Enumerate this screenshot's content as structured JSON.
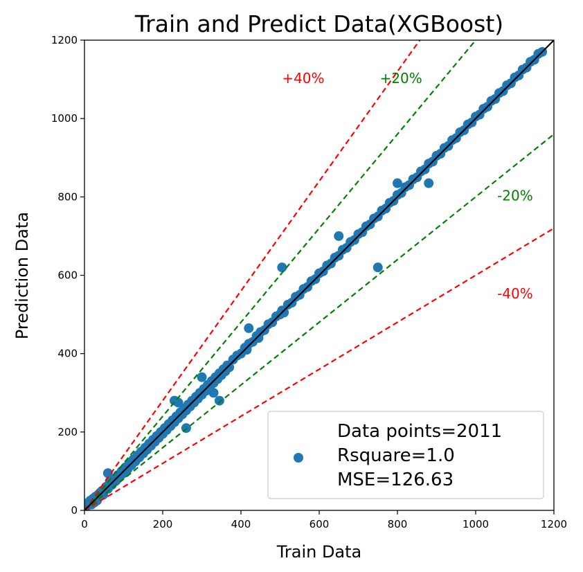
{
  "chart_data": {
    "type": "scatter",
    "title": "Train and Predict Data(XGBoost)",
    "xlabel": "Train Data",
    "ylabel": "Prediction Data",
    "xlim": [
      0,
      1200
    ],
    "ylim": [
      0,
      1200
    ],
    "xticks": [
      "0",
      "200",
      "400",
      "600",
      "800",
      "1000",
      "1200"
    ],
    "yticks": [
      "0",
      "200",
      "400",
      "600",
      "800",
      "1000",
      "1200"
    ],
    "grid": false,
    "legend_position": "lower-right",
    "legend": [
      "Data points=2011",
      "Rsquare=1.0",
      "MSE=126.63"
    ],
    "point_color": "#1f77b4",
    "reference_lines": [
      {
        "label": "+40%",
        "slope": 1.4,
        "color": "#ff0000",
        "label_at": [
          505,
          1105
        ]
      },
      {
        "label": "+20%",
        "slope": 1.2,
        "color": "#008000",
        "label_at": [
          755,
          1105
        ]
      },
      {
        "label": "-20%",
        "slope": 0.8,
        "color": "#008000",
        "label_at": [
          1055,
          805
        ]
      },
      {
        "label": "-40%",
        "slope": 0.6,
        "color": "#ff0000",
        "label_at": [
          1055,
          555
        ]
      },
      {
        "label": "",
        "slope": 1.0,
        "color": "#000000",
        "label_at": null
      }
    ],
    "series": [
      {
        "x": [
          5,
          10,
          15,
          18,
          22,
          25,
          28,
          30,
          32,
          35,
          38,
          40,
          45,
          48,
          55,
          60,
          65,
          70,
          75,
          80,
          85,
          90,
          95,
          100,
          105,
          110,
          115,
          120,
          125,
          130,
          135,
          140,
          145,
          150,
          155,
          160,
          165,
          170,
          175,
          180,
          185,
          190,
          195,
          200,
          205,
          210,
          215,
          220,
          225,
          230,
          235,
          240,
          245,
          250,
          255,
          260,
          265,
          270,
          275,
          280,
          285,
          290,
          295,
          300,
          305,
          310,
          315,
          320,
          325,
          330,
          335,
          340,
          345,
          350,
          355,
          360,
          365,
          370,
          380,
          390,
          400,
          410,
          415,
          420,
          430,
          440,
          445,
          450,
          460,
          470,
          480,
          490,
          500,
          505,
          510,
          520,
          530,
          540,
          550,
          560,
          570,
          580,
          590,
          600,
          610,
          620,
          630,
          640,
          650,
          660,
          670,
          680,
          690,
          700,
          710,
          720,
          730,
          740,
          750,
          760,
          770,
          780,
          790,
          800,
          810,
          820,
          830,
          840,
          850,
          860,
          870,
          880,
          890,
          900,
          910,
          920,
          930,
          940,
          950,
          960,
          970,
          980,
          990,
          1000,
          1010,
          1020,
          1030,
          1040,
          1050,
          1060,
          1070,
          1080,
          1090,
          1100,
          1110,
          1120,
          1130,
          1140,
          1150,
          1160,
          1170,
          60,
          65,
          345,
          240,
          505,
          750,
          880,
          800,
          420,
          650,
          230,
          300,
          330,
          260
        ],
        "y": [
          10,
          20,
          25,
          15,
          30,
          20,
          35,
          30,
          25,
          40,
          35,
          45,
          50,
          40,
          60,
          55,
          70,
          65,
          80,
          75,
          90,
          85,
          100,
          95,
          110,
          105,
          120,
          115,
          130,
          125,
          140,
          135,
          150,
          145,
          160,
          155,
          170,
          165,
          180,
          175,
          190,
          185,
          200,
          195,
          210,
          205,
          220,
          215,
          230,
          225,
          240,
          235,
          250,
          245,
          260,
          255,
          270,
          265,
          280,
          275,
          290,
          285,
          300,
          295,
          310,
          305,
          320,
          315,
          330,
          325,
          340,
          335,
          350,
          345,
          360,
          355,
          370,
          365,
          385,
          395,
          400,
          415,
          410,
          425,
          430,
          445,
          440,
          455,
          460,
          475,
          480,
          495,
          500,
          510,
          505,
          525,
          530,
          545,
          550,
          565,
          570,
          585,
          590,
          605,
          610,
          625,
          630,
          645,
          650,
          665,
          670,
          685,
          690,
          705,
          710,
          725,
          730,
          745,
          750,
          765,
          770,
          785,
          790,
          805,
          810,
          825,
          830,
          845,
          850,
          865,
          870,
          885,
          890,
          905,
          910,
          925,
          930,
          945,
          950,
          965,
          970,
          985,
          990,
          1005,
          1010,
          1025,
          1030,
          1045,
          1050,
          1065,
          1070,
          1085,
          1090,
          1105,
          1110,
          1125,
          1130,
          1145,
          1150,
          1165,
          1170,
          95,
          75,
          280,
          275,
          620,
          620,
          835,
          835,
          465,
          700,
          280,
          340,
          300,
          210
        ]
      }
    ]
  }
}
